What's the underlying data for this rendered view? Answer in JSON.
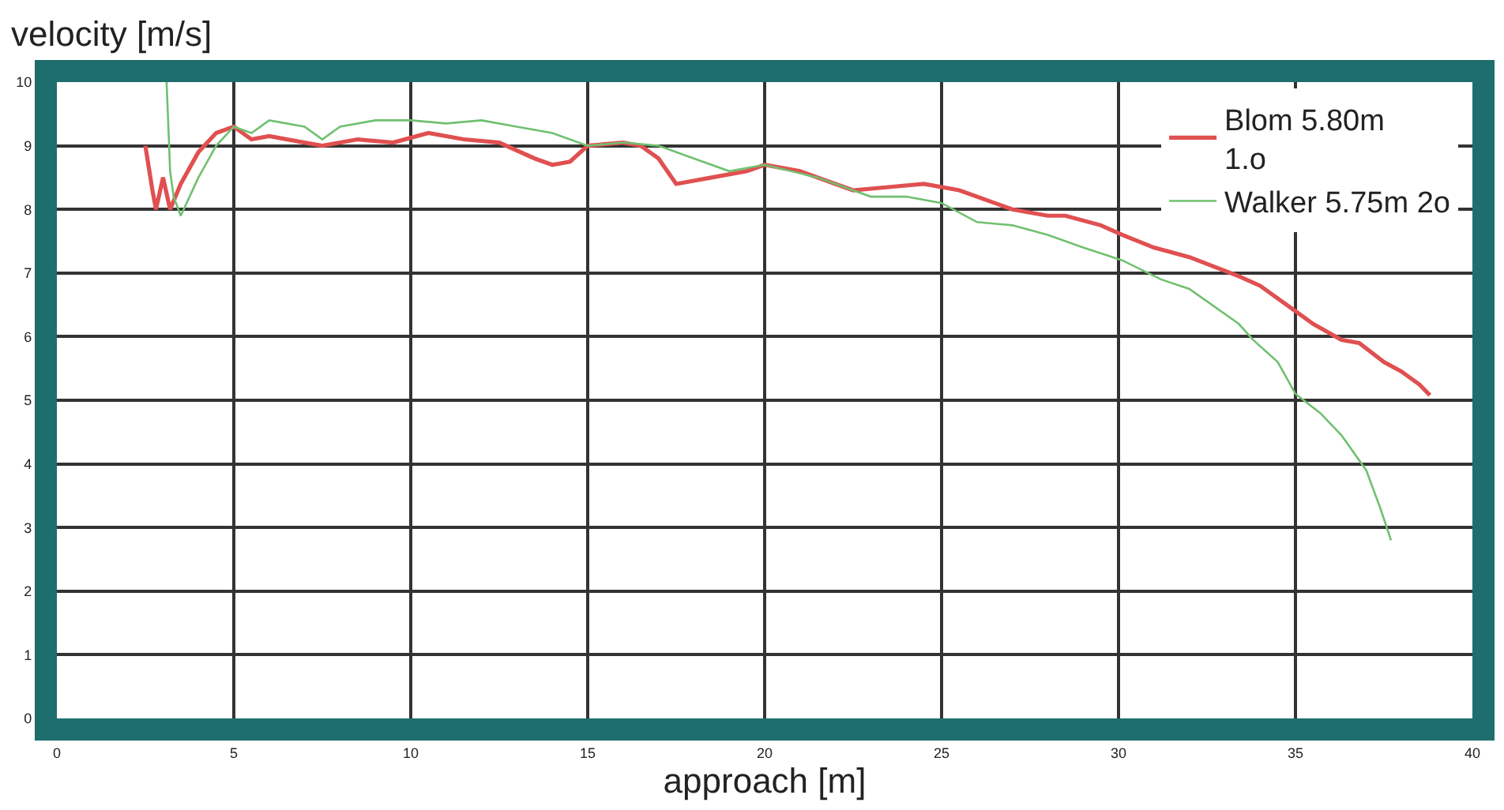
{
  "chart_data": {
    "type": "line",
    "ylabel": "velocity [m/s]",
    "xlabel": "approach [m]",
    "xlim": [
      0,
      40
    ],
    "xticks": [
      0,
      5,
      10,
      15,
      20,
      25,
      30,
      35,
      40
    ],
    "ylim": [
      0,
      10
    ],
    "yticks": [
      0,
      1,
      2,
      3,
      4,
      5,
      6,
      7,
      8,
      9,
      10
    ],
    "grid": true,
    "legend": "top right",
    "marker": "none",
    "line_style": "solid",
    "series": [
      {
        "name": "Blom 5.80m\n1.o",
        "color": "#e05050",
        "x": [
          2.5,
          2.7,
          2.8,
          3.0,
          3.2,
          3.5,
          4.0,
          4.5,
          5.0,
          5.5,
          6.0,
          7.0,
          7.5,
          8.5,
          9.5,
          10.5,
          11.5,
          12.5,
          13.5,
          14.0,
          14.5,
          15.0,
          16.0,
          16.5,
          17.0,
          17.5,
          18.5,
          19.5,
          20.0,
          21.0,
          22.0,
          22.5,
          23.5,
          24.5,
          25.5,
          26.5,
          27.0,
          28.0,
          28.5,
          29.5,
          30.1,
          31.0,
          32.0,
          33.4,
          34.0,
          35.0,
          35.5,
          36.3,
          36.8,
          37.5,
          38.0,
          38.5,
          38.8
        ],
        "values": [
          9.0,
          8.3,
          8.0,
          8.5,
          8.0,
          8.4,
          8.9,
          9.2,
          9.3,
          9.1,
          9.15,
          9.05,
          9.0,
          9.1,
          9.05,
          9.2,
          9.1,
          9.05,
          8.8,
          8.7,
          8.75,
          9.0,
          9.05,
          9.0,
          8.8,
          8.4,
          8.5,
          8.6,
          8.7,
          8.6,
          8.4,
          8.3,
          8.35,
          8.4,
          8.3,
          8.1,
          8.0,
          7.9,
          7.9,
          7.75,
          7.6,
          7.4,
          7.25,
          6.95,
          6.8,
          6.4,
          6.2,
          5.95,
          5.9,
          5.6,
          5.45,
          5.25,
          5.08
        ]
      },
      {
        "name": "Walker 5.75m 2o",
        "color": "#70c070",
        "x": [
          3.1,
          3.2,
          3.3,
          3.5,
          4.0,
          4.5,
          5.0,
          5.5,
          6.0,
          7.0,
          7.5,
          8.0,
          9.0,
          10.0,
          11.0,
          12.0,
          13.0,
          14.0,
          15.0,
          16.0,
          17.0,
          18.0,
          19.0,
          20.0,
          21.5,
          23.0,
          24.0,
          25.0,
          26.0,
          27.0,
          28.0,
          29.0,
          30.1,
          31.2,
          32.0,
          33.4,
          33.8,
          34.5,
          35.0,
          35.7,
          36.3,
          37.0,
          37.4,
          37.7
        ],
        "values": [
          10.0,
          8.6,
          8.2,
          7.9,
          8.5,
          9.0,
          9.3,
          9.2,
          9.4,
          9.3,
          9.1,
          9.3,
          9.4,
          9.4,
          9.35,
          9.4,
          9.3,
          9.2,
          9.0,
          9.05,
          9.0,
          8.8,
          8.6,
          8.7,
          8.5,
          8.2,
          8.2,
          8.1,
          7.8,
          7.75,
          7.6,
          7.4,
          7.2,
          6.9,
          6.75,
          6.2,
          5.95,
          5.6,
          5.1,
          4.8,
          4.45,
          3.9,
          3.3,
          2.8
        ]
      }
    ]
  }
}
